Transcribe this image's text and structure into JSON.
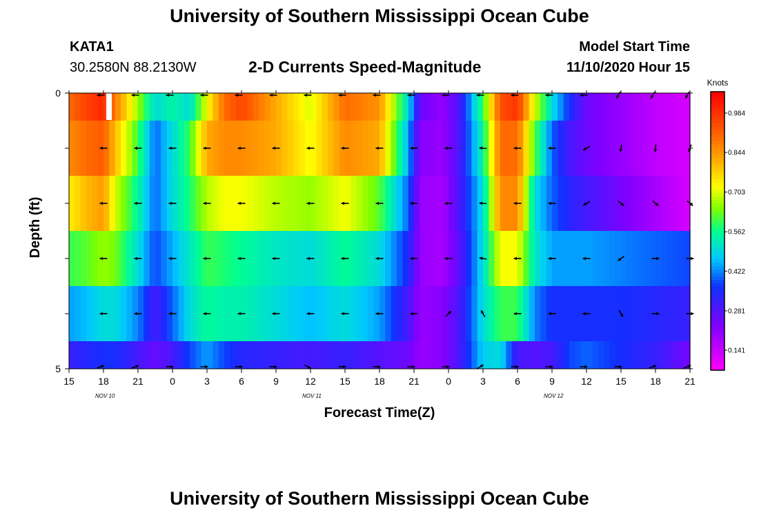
{
  "header": {
    "title": "University of Southern Mississippi Ocean Cube",
    "station_id": "KATA1",
    "station_coords": "30.2580N 88.2130W",
    "subtitle": "2-D Currents Speed-Magnitude",
    "model_start_label": "Model Start Time",
    "model_start_value": "11/10/2020 Hour 15"
  },
  "footer": {
    "title": "University of Southern Mississippi Ocean Cube"
  },
  "chart_data": {
    "type": "heatmap",
    "title": "2-D Currents Speed-Magnitude",
    "xlabel": "Forecast Time(Z)",
    "ylabel": "Depth (ft)",
    "x_ticks": [
      "15",
      "18",
      "21",
      "0",
      "3",
      "6",
      "9",
      "12",
      "15",
      "18",
      "21",
      "0",
      "3",
      "6",
      "9",
      "12",
      "15",
      "18",
      "21"
    ],
    "day_labels": [
      {
        "label": "NOV 10",
        "hour_index": 1
      },
      {
        "label": "NOV 11",
        "hour_index": 7
      },
      {
        "label": "NOV 12",
        "hour_index": 14
      }
    ],
    "x_range_hours": [
      0,
      54
    ],
    "y_ticks": [
      "0",
      "5"
    ],
    "y_range": [
      0,
      5
    ],
    "colorbar": {
      "unit": "Knots",
      "range": [
        0.07,
        1.06
      ],
      "tick_labels": [
        "0.141",
        "0.281",
        "0.422",
        "0.562",
        "0.703",
        "0.844",
        "0.984"
      ]
    },
    "speed_anchor_hours": [
      0,
      1.5,
      3,
      4,
      6,
      7.5,
      9,
      10.5,
      12,
      13.5,
      15,
      18,
      21,
      24,
      27,
      29.5,
      30.5,
      32.5,
      34,
      36,
      37.5,
      39,
      40.5,
      42,
      43.5,
      45,
      48,
      51,
      54
    ],
    "speed_layers_knots": [
      [
        0.9,
        0.96,
        1.0,
        0.88,
        0.66,
        0.5,
        0.55,
        0.5,
        0.72,
        0.9,
        0.95,
        0.82,
        0.7,
        0.9,
        0.85,
        0.5,
        0.26,
        0.2,
        0.3,
        0.6,
        0.94,
        0.98,
        0.7,
        0.5,
        0.36,
        0.25,
        0.2,
        0.15,
        0.12
      ],
      [
        0.86,
        0.9,
        0.92,
        0.8,
        0.6,
        0.4,
        0.5,
        0.6,
        0.82,
        0.86,
        0.86,
        0.82,
        0.72,
        0.86,
        0.82,
        0.45,
        0.22,
        0.2,
        0.3,
        0.55,
        0.9,
        0.9,
        0.62,
        0.4,
        0.3,
        0.25,
        0.2,
        0.15,
        0.12
      ],
      [
        0.74,
        0.8,
        0.84,
        0.7,
        0.55,
        0.4,
        0.5,
        0.58,
        0.68,
        0.72,
        0.72,
        0.68,
        0.66,
        0.72,
        0.62,
        0.4,
        0.2,
        0.18,
        0.3,
        0.5,
        0.86,
        0.86,
        0.5,
        0.4,
        0.34,
        0.3,
        0.24,
        0.18,
        0.12
      ],
      [
        0.6,
        0.62,
        0.66,
        0.64,
        0.5,
        0.38,
        0.45,
        0.52,
        0.6,
        0.58,
        0.56,
        0.52,
        0.5,
        0.56,
        0.5,
        0.35,
        0.2,
        0.18,
        0.28,
        0.5,
        0.72,
        0.72,
        0.52,
        0.44,
        0.44,
        0.44,
        0.42,
        0.4,
        0.38
      ],
      [
        0.44,
        0.46,
        0.5,
        0.5,
        0.42,
        0.3,
        0.4,
        0.5,
        0.56,
        0.54,
        0.54,
        0.5,
        0.46,
        0.5,
        0.44,
        0.3,
        0.2,
        0.22,
        0.3,
        0.5,
        0.6,
        0.6,
        0.42,
        0.36,
        0.36,
        0.36,
        0.36,
        0.34,
        0.32
      ],
      [
        0.32,
        0.34,
        0.36,
        0.36,
        0.3,
        0.26,
        0.3,
        0.38,
        0.44,
        0.38,
        0.34,
        0.32,
        0.3,
        0.32,
        0.28,
        0.25,
        0.2,
        0.22,
        0.3,
        0.48,
        0.5,
        0.3,
        0.28,
        0.3,
        0.38,
        0.4,
        0.36,
        0.32,
        0.24
      ]
    ],
    "vector_hours": [
      3,
      6,
      9,
      12,
      15,
      18,
      21,
      24,
      27,
      30,
      33,
      36,
      39,
      42,
      45,
      48,
      51,
      54
    ],
    "vector_rows_depth_ft": [
      0,
      1,
      2,
      3,
      4,
      5
    ],
    "vector_directions_deg": [
      [
        180,
        180,
        180,
        180,
        180,
        180,
        180,
        180,
        180,
        180,
        180,
        180,
        180,
        180,
        180,
        240,
        240,
        240
      ],
      [
        180,
        180,
        180,
        180,
        180,
        180,
        180,
        180,
        180,
        180,
        180,
        175,
        180,
        180,
        210,
        260,
        265,
        250
      ],
      [
        180,
        180,
        180,
        180,
        180,
        180,
        180,
        180,
        180,
        180,
        180,
        175,
        180,
        180,
        210,
        320,
        320,
        320
      ],
      [
        180,
        180,
        180,
        180,
        180,
        180,
        180,
        180,
        180,
        180,
        180,
        170,
        180,
        180,
        180,
        215,
        0,
        0
      ],
      [
        180,
        180,
        180,
        180,
        180,
        180,
        180,
        180,
        180,
        180,
        45,
        120,
        180,
        180,
        180,
        300,
        0,
        0
      ],
      [
        20,
        20,
        0,
        0,
        0,
        0,
        330,
        0,
        0,
        0,
        0,
        30,
        0,
        0,
        0,
        0,
        20,
        20
      ]
    ]
  }
}
